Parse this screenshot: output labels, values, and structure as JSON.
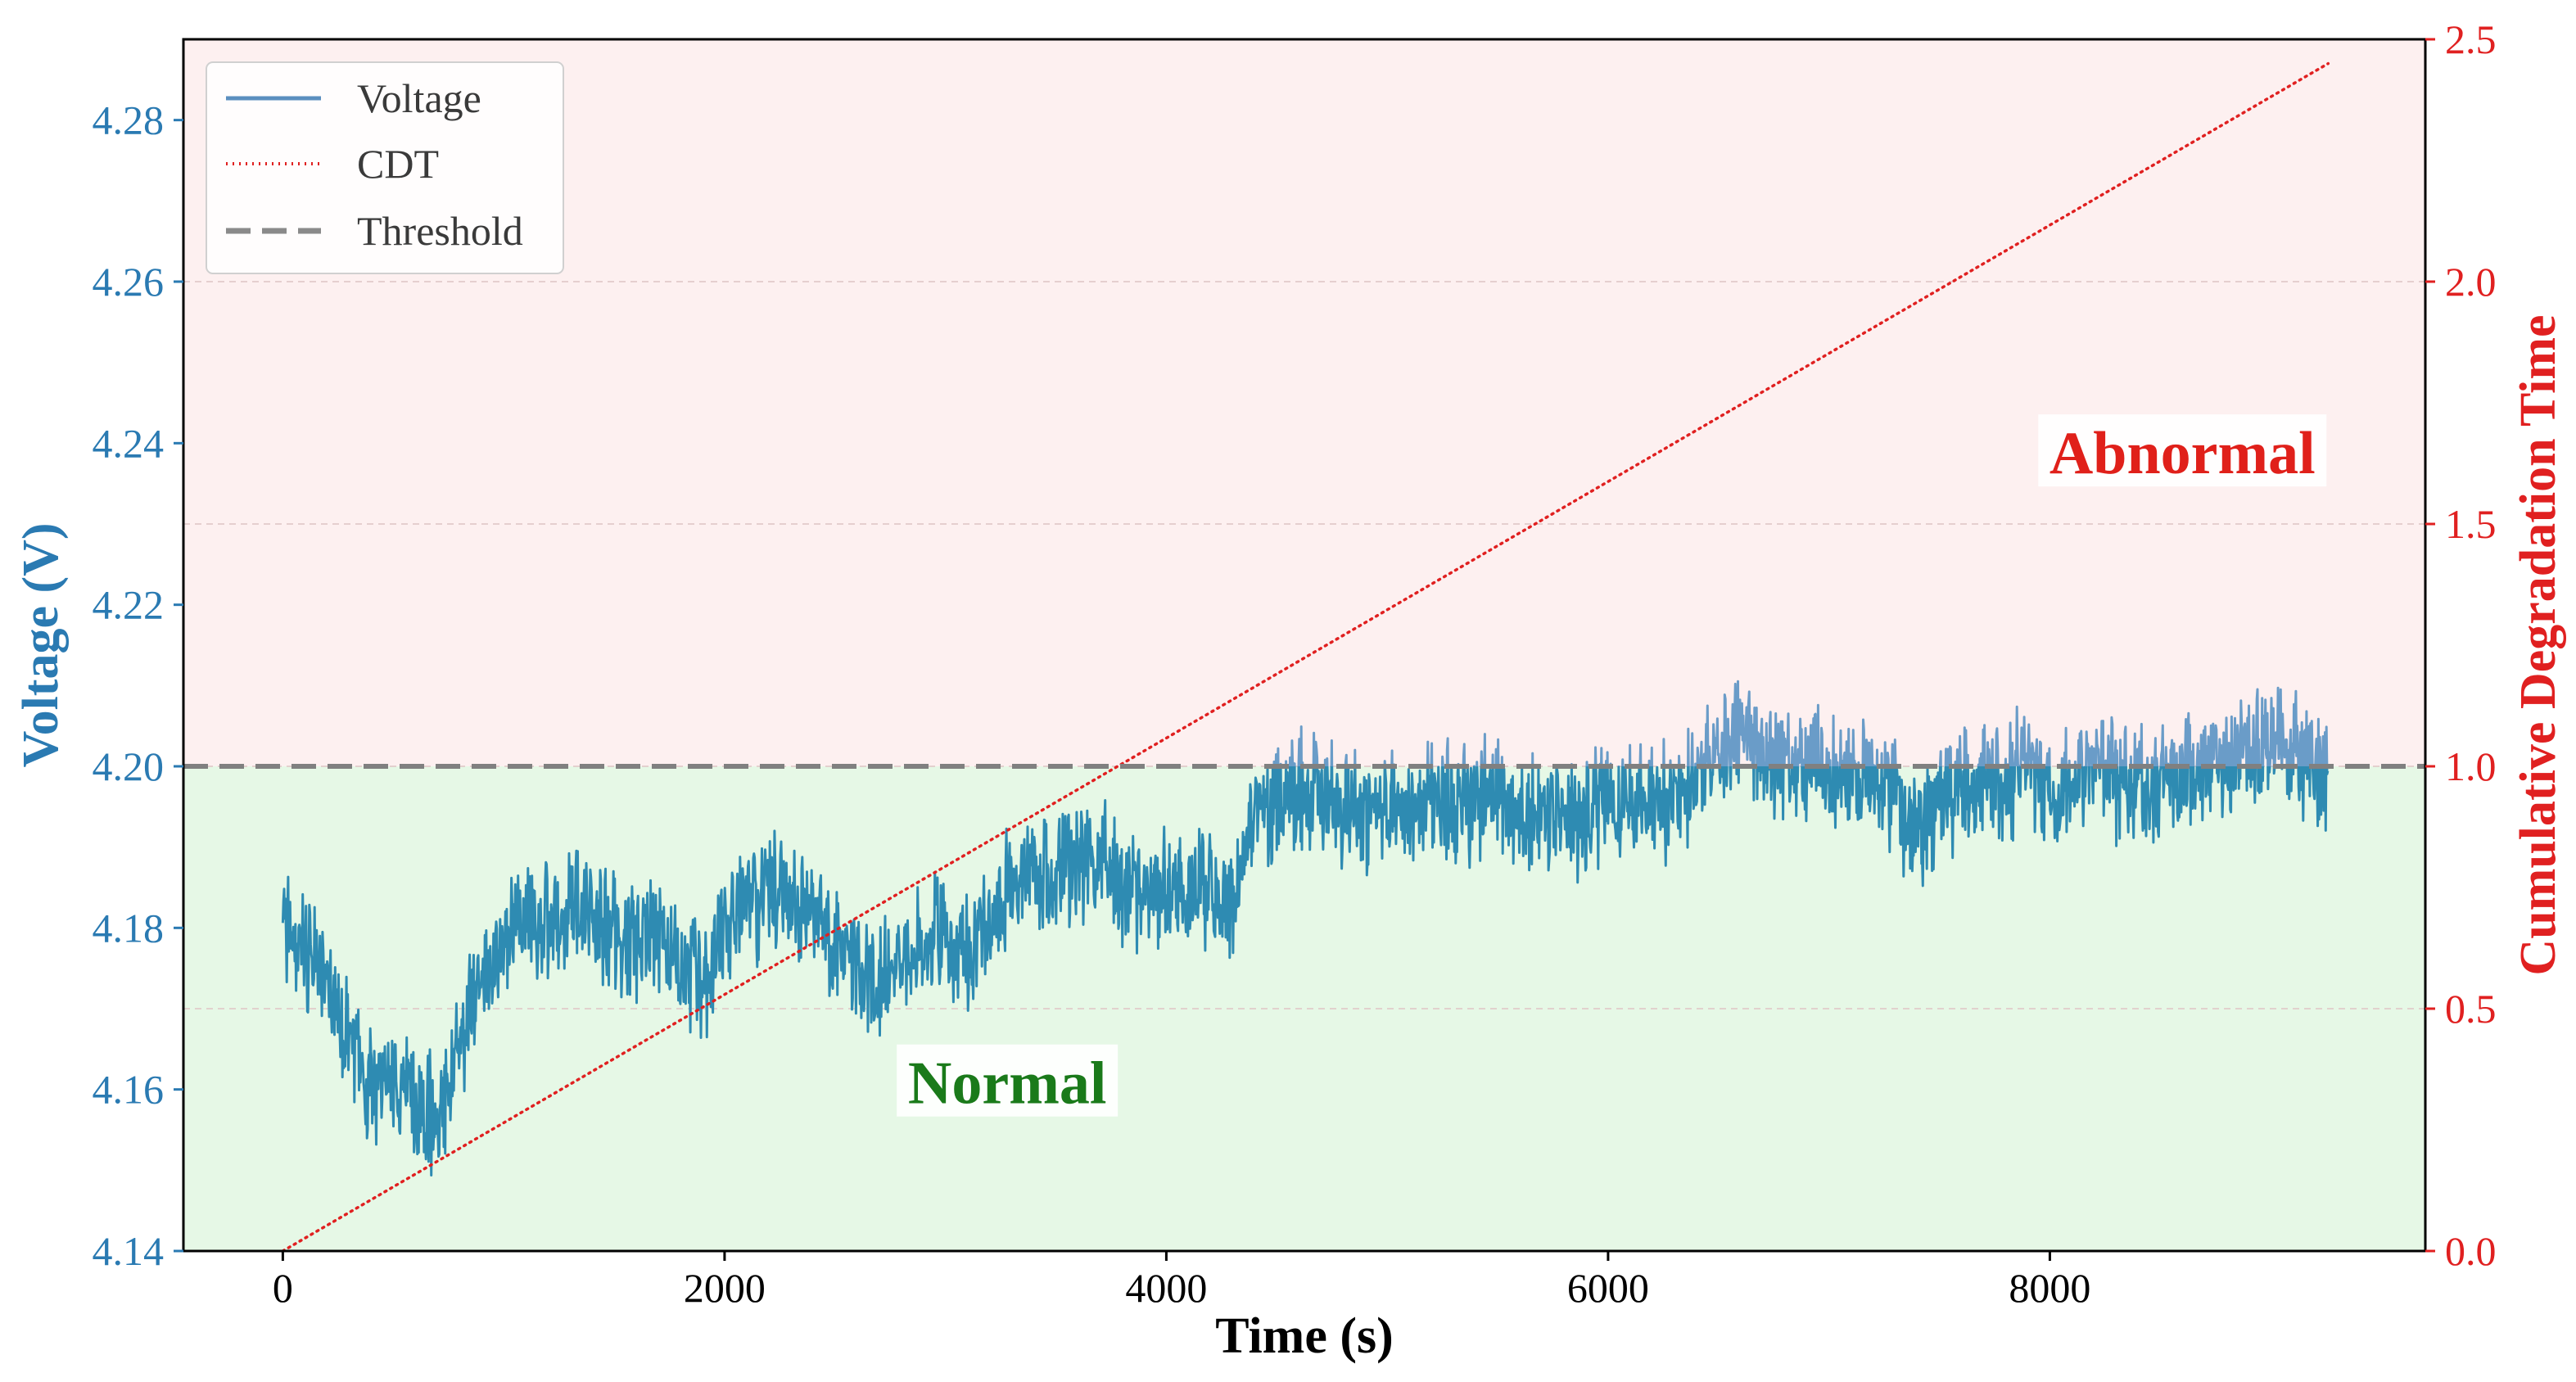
{
  "chart_data": {
    "type": "line",
    "xlabel": "Time (s)",
    "ylabel_left": "Voltage (V)",
    "ylabel_right": "Cumulative Degradation Time",
    "xlim": [
      -450,
      9700
    ],
    "ylim_left": [
      4.14,
      4.29
    ],
    "ylim_right": [
      0.0,
      2.5
    ],
    "x_ticks": [
      0,
      2000,
      4000,
      6000,
      8000
    ],
    "x_tick_labels": [
      "0",
      "2000",
      "4000",
      "6000",
      "8000"
    ],
    "y_left_ticks": [
      4.14,
      4.16,
      4.18,
      4.2,
      4.22,
      4.24,
      4.26,
      4.28
    ],
    "y_left_tick_labels": [
      "4.14",
      "4.16",
      "4.18",
      "4.20",
      "4.22",
      "4.24",
      "4.26",
      "4.28"
    ],
    "y_right_ticks": [
      0.0,
      0.5,
      1.0,
      1.5,
      2.0,
      2.5
    ],
    "y_right_tick_labels": [
      "0.0",
      "0.5",
      "1.0",
      "1.5",
      "2.0",
      "2.5"
    ],
    "grid": true,
    "legend_position": "top-left",
    "threshold": 4.2,
    "regions": [
      {
        "label": "Normal",
        "from": 4.14,
        "to": 4.2,
        "color": "#e6f8e6",
        "label_at": [
          3280,
          4.1605
        ],
        "label_color": "#1a7a1a"
      },
      {
        "label": "Abnormal",
        "from": 4.2,
        "to": 4.29,
        "color": "#fdf0f0",
        "label_at": [
          8600,
          4.2385
        ],
        "label_color": "#e0201a"
      }
    ],
    "series": [
      {
        "name": "Voltage",
        "style": "solid",
        "color": "#2e8bb2",
        "above_threshold_color": "#6a9cc8",
        "axis": "left",
        "x": [
          0,
          100,
          200,
          300,
          400,
          500,
          600,
          700,
          800,
          900,
          1000,
          1100,
          1200,
          1300,
          1400,
          1500,
          1600,
          1700,
          1800,
          1900,
          2000,
          2100,
          2200,
          2300,
          2400,
          2500,
          2600,
          2700,
          2800,
          2900,
          3000,
          3100,
          3200,
          3300,
          3400,
          3500,
          3600,
          3700,
          3800,
          3900,
          4000,
          4100,
          4200,
          4300,
          4400,
          4500,
          4600,
          4700,
          4800,
          4900,
          5000,
          5100,
          5200,
          5300,
          5400,
          5500,
          5600,
          5700,
          5800,
          5900,
          6000,
          6100,
          6200,
          6300,
          6400,
          6500,
          6600,
          6700,
          6800,
          6900,
          7000,
          7100,
          7200,
          7300,
          7400,
          7500,
          7600,
          7700,
          7800,
          7900,
          8000,
          8100,
          8200,
          8300,
          8400,
          8500,
          8600,
          8700,
          8800,
          8900,
          9000,
          9100,
          9200,
          9260
        ],
        "values": [
          4.18,
          4.178,
          4.173,
          4.165,
          4.16,
          4.162,
          4.158,
          4.156,
          4.165,
          4.176,
          4.179,
          4.181,
          4.18,
          4.183,
          4.182,
          4.18,
          4.178,
          4.179,
          4.177,
          4.173,
          4.18,
          4.182,
          4.185,
          4.183,
          4.18,
          4.178,
          4.175,
          4.173,
          4.177,
          4.18,
          4.178,
          4.176,
          4.181,
          4.185,
          4.187,
          4.186,
          4.188,
          4.189,
          4.185,
          4.183,
          4.186,
          4.185,
          4.184,
          4.183,
          4.195,
          4.196,
          4.197,
          4.196,
          4.195,
          4.194,
          4.196,
          4.194,
          4.197,
          4.195,
          4.196,
          4.197,
          4.194,
          4.193,
          4.195,
          4.193,
          4.197,
          4.196,
          4.195,
          4.196,
          4.197,
          4.203,
          4.204,
          4.202,
          4.201,
          4.2,
          4.199,
          4.199,
          4.198,
          4.196,
          4.19,
          4.196,
          4.197,
          4.199,
          4.198,
          4.2,
          4.197,
          4.198,
          4.2,
          4.198,
          4.197,
          4.199,
          4.198,
          4.2,
          4.2,
          4.201,
          4.203,
          4.202,
          4.201,
          4.198
        ]
      },
      {
        "name": "CDT",
        "style": "dotted",
        "color": "#e02020",
        "axis": "right",
        "x": [
          0,
          9260
        ],
        "values": [
          0.0,
          2.45
        ]
      },
      {
        "name": "Threshold",
        "style": "dashed",
        "color": "#808080",
        "axis": "left",
        "x": [
          -450,
          9700
        ],
        "values": [
          4.2,
          4.2
        ]
      }
    ]
  }
}
